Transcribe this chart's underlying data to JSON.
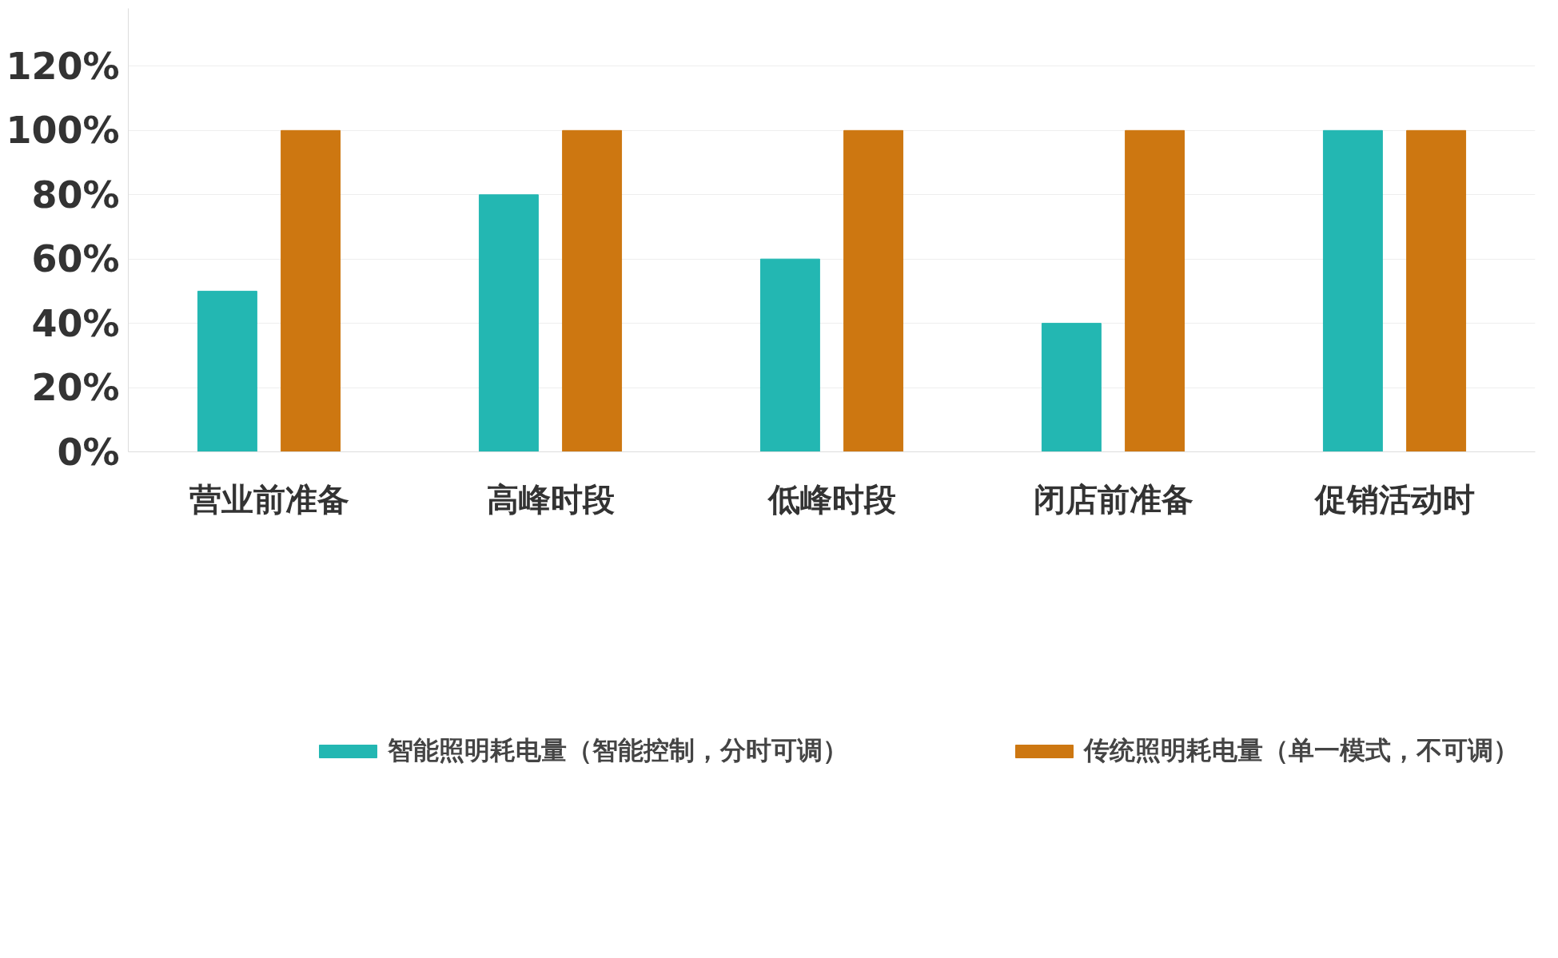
{
  "chart_data": {
    "type": "bar",
    "categories": [
      "营业前准备",
      "高峰时段",
      "低峰时段",
      "闭店前准备",
      "促销活动时"
    ],
    "series": [
      {
        "name": "智能照明耗电量（智能控制，分时可调）",
        "color": "#23b7b2",
        "values": [
          50,
          80,
          60,
          40,
          100
        ]
      },
      {
        "name": "传统照明耗电量（单一模式，不可调）",
        "color": "#cd7711",
        "values": [
          100,
          100,
          100,
          100,
          100
        ]
      }
    ],
    "ylim": [
      0,
      138
    ],
    "yticks": [
      {
        "value": 0,
        "label": "0%"
      },
      {
        "value": 20,
        "label": "20%"
      },
      {
        "value": 40,
        "label": "40%"
      },
      {
        "value": 60,
        "label": "60%"
      },
      {
        "value": 80,
        "label": "80%"
      },
      {
        "value": 100,
        "label": "100%"
      },
      {
        "value": 120,
        "label": "120%"
      }
    ],
    "grid": "y",
    "legend": "bottom"
  }
}
